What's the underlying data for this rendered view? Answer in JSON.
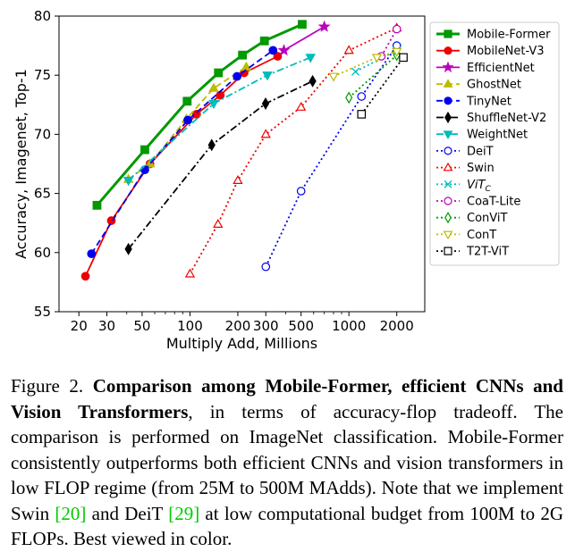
{
  "chart_data": {
    "type": "line",
    "xlabel": "Multiply Add, Millions",
    "ylabel": "Accuracy, Imagenet, Top-1",
    "xscale": "log",
    "xlim": [
      15,
      3000
    ],
    "ylim": [
      55,
      80
    ],
    "xticks": [
      20,
      30,
      50,
      100,
      200,
      300,
      500,
      1000,
      2000
    ],
    "xtick_labels": [
      "20",
      "30",
      "50",
      "100",
      "200",
      "300",
      "500",
      "1000",
      "2000"
    ],
    "yticks": [
      55,
      60,
      65,
      70,
      75,
      80
    ],
    "ytick_labels": [
      "55",
      "60",
      "65",
      "70",
      "75",
      "80"
    ],
    "grid": false,
    "legend_position": "right",
    "series": [
      {
        "name": "Mobile-Former",
        "color": "#009900",
        "line": "solid",
        "width": 3,
        "marker": "square",
        "filled": true,
        "x": [
          26,
          52,
          96,
          151,
          214,
          294,
          508
        ],
        "y": [
          64.0,
          68.7,
          72.8,
          75.2,
          76.7,
          77.9,
          79.3
        ]
      },
      {
        "name": "MobileNet-V3",
        "color": "#ee0000",
        "line": "solid",
        "width": 1.8,
        "marker": "circle",
        "filled": true,
        "x": [
          22,
          32,
          56,
          110,
          155,
          219,
          356
        ],
        "y": [
          58.0,
          62.7,
          67.5,
          71.7,
          73.3,
          75.2,
          76.6
        ]
      },
      {
        "name": "EfficientNet",
        "color": "#bb00bb",
        "line": "solid",
        "width": 1.8,
        "marker": "star",
        "filled": true,
        "x": [
          390,
          700
        ],
        "y": [
          77.1,
          79.1
        ]
      },
      {
        "name": "GhostNet",
        "color": "#bbbb00",
        "line": "dashed",
        "width": 1.8,
        "marker": "triangle-up",
        "filled": true,
        "x": [
          41,
          56,
          95,
          141,
          226
        ],
        "y": [
          66.2,
          67.5,
          71.3,
          73.9,
          75.7
        ]
      },
      {
        "name": "TinyNet",
        "color": "#0000ee",
        "line": "dashed",
        "width": 1.8,
        "marker": "circle",
        "filled": true,
        "x": [
          24,
          52,
          97,
          198,
          333
        ],
        "y": [
          59.9,
          67.0,
          71.2,
          74.9,
          77.1
        ]
      },
      {
        "name": "ShuffleNet-V2",
        "color": "#000000",
        "line": "dashdot",
        "width": 1.8,
        "marker": "diamond",
        "filled": true,
        "x": [
          41,
          137,
          299,
          591
        ],
        "y": [
          60.3,
          69.1,
          72.6,
          74.5
        ]
      },
      {
        "name": "WeightNet",
        "color": "#00bbbb",
        "line": "dashdot",
        "width": 1.8,
        "marker": "triangle-down",
        "filled": true,
        "x": [
          41,
          141,
          307,
          573
        ],
        "y": [
          66.1,
          72.6,
          75.0,
          76.5
        ]
      },
      {
        "name": "DeiT",
        "color": "#0000ee",
        "line": "dotted",
        "width": 1.8,
        "marker": "circle",
        "filled": false,
        "x": [
          300,
          500,
          1200,
          2000
        ],
        "y": [
          58.8,
          65.2,
          73.2,
          77.5
        ]
      },
      {
        "name": "Swin",
        "color": "#ee0000",
        "line": "dotted",
        "width": 1.8,
        "marker": "triangle-up",
        "filled": false,
        "x": [
          100,
          150,
          200,
          300,
          500,
          1000,
          2000
        ],
        "y": [
          58.2,
          62.4,
          66.1,
          70.0,
          72.3,
          77.1,
          79.0
        ]
      },
      {
        "name": "ViT_C",
        "color": "#00bbbb",
        "line": "dotted",
        "width": 1.8,
        "marker": "x",
        "filled": false,
        "x": [
          1100,
          2000
        ],
        "y": [
          75.3,
          77.1
        ]
      },
      {
        "name": "CoaT-Lite",
        "color": "#bb00bb",
        "line": "dotted",
        "width": 1.8,
        "marker": "circle",
        "filled": false,
        "x": [
          1600,
          2000
        ],
        "y": [
          76.6,
          78.9
        ]
      },
      {
        "name": "ConViT",
        "color": "#009900",
        "line": "dotted",
        "width": 1.8,
        "marker": "diamond",
        "filled": false,
        "x": [
          1000,
          2000
        ],
        "y": [
          73.1,
          76.7
        ]
      },
      {
        "name": "ConT",
        "color": "#bbbb00",
        "line": "dotted",
        "width": 1.8,
        "marker": "triangle-down",
        "filled": false,
        "x": [
          800,
          1500,
          2000
        ],
        "y": [
          74.9,
          76.5,
          77.0
        ]
      },
      {
        "name": "T2T-ViT",
        "color": "#000000",
        "line": "dotted",
        "width": 1.8,
        "marker": "square",
        "filled": false,
        "x": [
          1200,
          2200
        ],
        "y": [
          71.7,
          76.5
        ]
      }
    ]
  },
  "caption": {
    "prefix": "Figure 2. ",
    "bold": "Comparison among Mobile-Former, efficient CNNs and Vision Transformers",
    "body1": ", in terms of accuracy-flop tradeoff. The comparison is performed on ImageNet classification. Mobile-Former consistently outperforms both efficient CNNs and vision transformers in low FLOP regime (from 25M to 500M MAdds). Note that we implement Swin ",
    "ref1": "[20]",
    "body2": " and DeiT ",
    "ref2": "[29]",
    "body3": " at low computational budget from 100M to 2G FLOPs. Best viewed in color."
  }
}
